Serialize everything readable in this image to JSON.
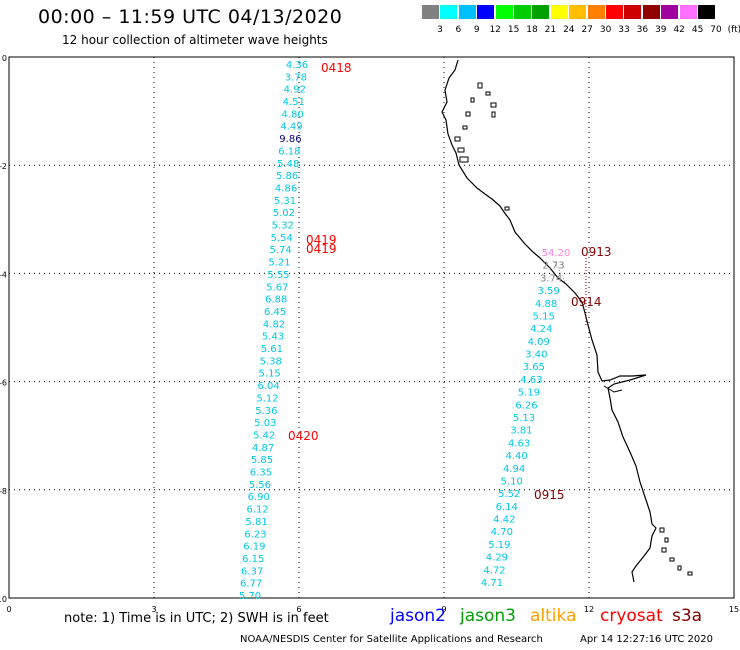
{
  "title": "00:00 – 11:59 UTC 04/13/2020",
  "subtitle": "12 hour collection of altimeter wave heights",
  "legend": {
    "labels": [
      "3",
      "6",
      "9",
      "12",
      "15",
      "18",
      "21",
      "24",
      "27",
      "30",
      "33",
      "36",
      "39",
      "42",
      "45",
      "70",
      "(ft)"
    ],
    "colors": [
      "#808080",
      "#00ffff",
      "#00bfff",
      "#0000ff",
      "#00ff00",
      "#00cc00",
      "#00a000",
      "#ffff00",
      "#ffbf00",
      "#ff8000",
      "#ff0000",
      "#cc0000",
      "#900000",
      "#a000a0",
      "#ff70ff",
      "#000000"
    ]
  },
  "axes": {
    "x_ticks": [
      "0",
      "3",
      "6",
      "9",
      "12",
      "15"
    ],
    "y_ticks": [
      "0",
      "-2",
      "-4",
      "-6",
      "-8",
      "-10"
    ],
    "x_range": [
      0,
      15
    ],
    "y_range": [
      -10,
      0
    ]
  },
  "colors": {
    "cyan": "#00c8e6",
    "navy": "#000080",
    "red_label": "#ff0000",
    "dark_red_label": "#800000",
    "pink": "#ff80e0",
    "gray": "#808080"
  },
  "tracks": [
    {
      "id": "t1",
      "values": [
        "4.36",
        "3.78",
        "4.92",
        "4.51",
        "4.80",
        "4.49",
        "9.86",
        "6.18",
        "5.48",
        "5.86",
        "4.86",
        "5.31",
        "5.02",
        "5.32",
        "5.54",
        "5.74",
        "5.21",
        "5.55",
        "5.67",
        "6.88",
        "6.45",
        "4.82",
        "5.43",
        "5.61",
        "5.38",
        "5.15",
        "6.04",
        "5.12",
        "5.36",
        "5.03",
        "5.42",
        "4.87",
        "5.85",
        "6.35",
        "5.56",
        "6.90",
        "6.12",
        "5.81",
        "6.23",
        "6.19",
        "6.15",
        "6.37",
        "6.77",
        "5.70"
      ]
    },
    {
      "id": "t2",
      "values": [
        "54.20",
        "2.73",
        "3.74",
        "3.59",
        "4.88",
        "5.15",
        "4.24",
        "4.09",
        "3.40",
        "3.65",
        "4.63",
        "5.19",
        "6.26",
        "5.13",
        "3.81",
        "4.63",
        "4.40",
        "4.94",
        "5.10",
        "5.52",
        "6.14",
        "4.42",
        "4.70",
        "5.19",
        "4.29",
        "4.72",
        "4.71"
      ]
    }
  ],
  "time_labels": [
    "0418",
    "0419",
    "0419",
    "0420",
    "0913",
    "0914",
    "0915"
  ],
  "note": "note:  1) Time is in UTC;  2) SWH is in feet",
  "satellites": [
    {
      "name": "jason2",
      "color": "#0000ff"
    },
    {
      "name": "jason3",
      "color": "#00a000"
    },
    {
      "name": "altika",
      "color": "#ffa000"
    },
    {
      "name": "cryosat",
      "color": "#ff0000"
    },
    {
      "name": "s3a",
      "color": "#800000"
    }
  ],
  "credit_left": "NOAA/NESDIS Center for Satellite Applications and Research",
  "credit_right": "Apr 14 12:27:16 UTC 2020"
}
